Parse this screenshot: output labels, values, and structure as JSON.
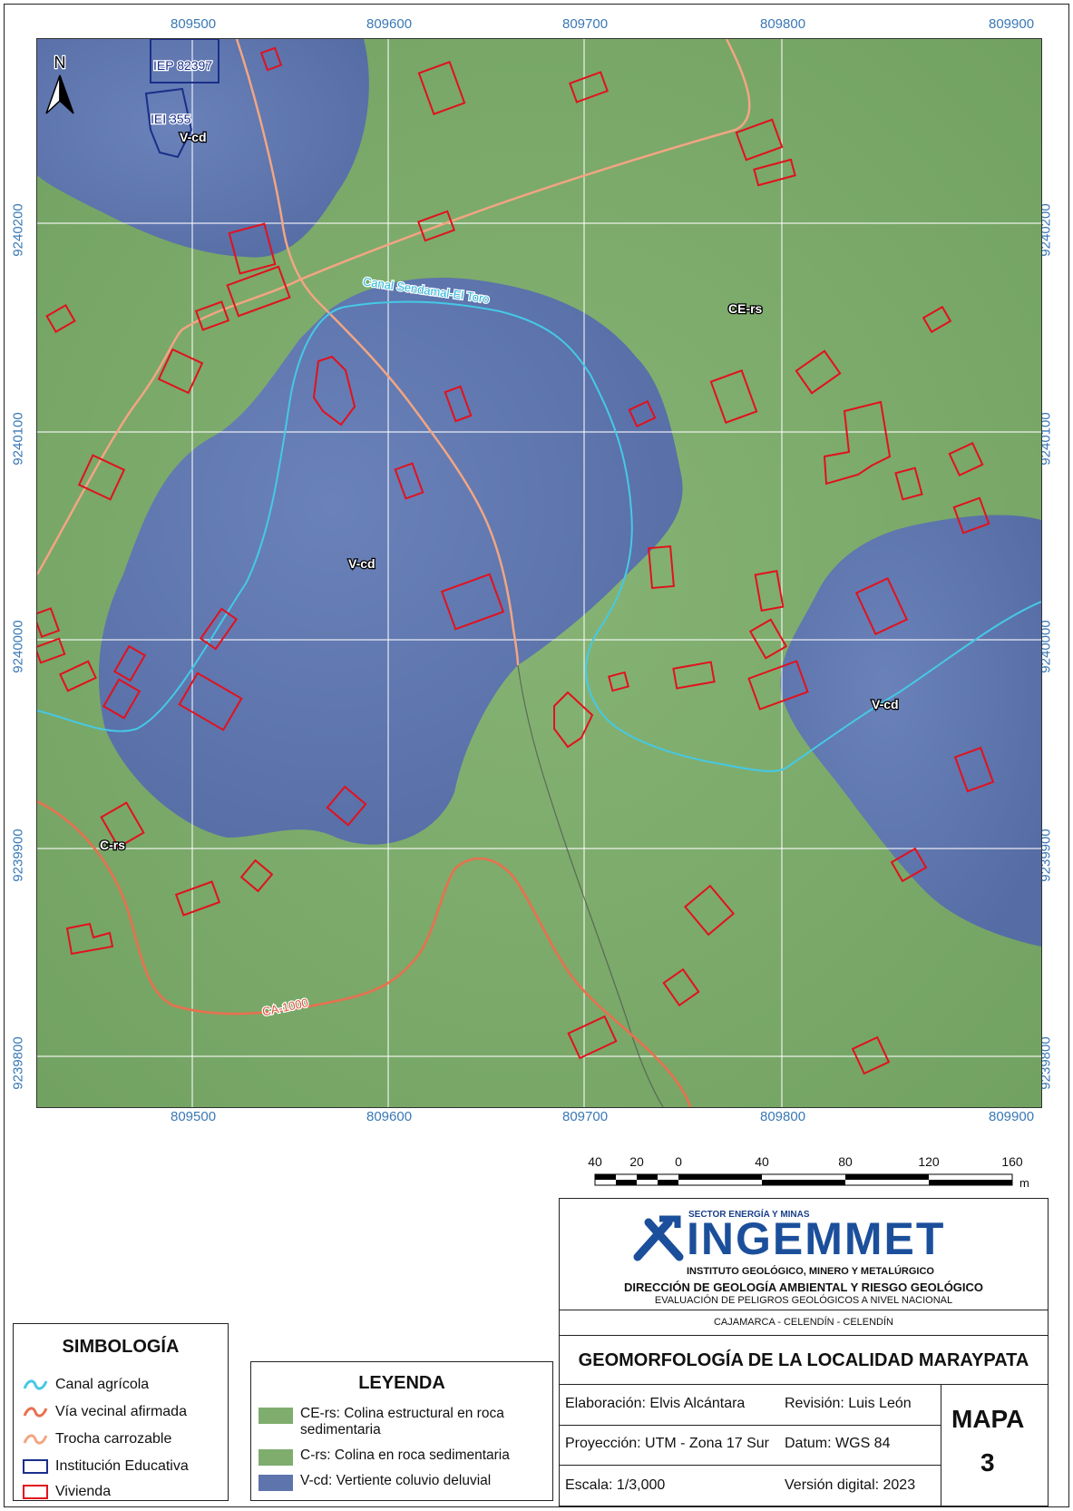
{
  "map": {
    "north_label": "N",
    "easting_ticks": [
      "809500",
      "809600",
      "809700",
      "809800",
      "809900"
    ],
    "northing_ticks": [
      "9240200",
      "9240100",
      "9240000",
      "9239900",
      "9239800"
    ],
    "unit_labels": {
      "V-cd": "V-cd",
      "CE-rs": "CE-rs",
      "C-rs": "C-rs"
    },
    "feature_labels": {
      "canal": "Canal Sendamal-El Toro",
      "road": "CA-1000",
      "school1": "IEP 82397",
      "school2": "IEI 355"
    },
    "colors": {
      "green": "#7fad6e",
      "blue": "#5d74ad",
      "canal": "#45c9e6",
      "road": "#e8704f",
      "trail": "#f2a582",
      "school": "#1a2f8a",
      "house": "#e2111d"
    }
  },
  "scale_bar": {
    "labels": [
      "40",
      "20",
      "0",
      "40",
      "80",
      "120",
      "160"
    ],
    "unit": "m"
  },
  "title_block": {
    "sector": "SECTOR ENERGÍA Y MINAS",
    "org_logo": "INGEMMET",
    "institute": "INSTITUTO GEOLÓGICO, MINERO Y METALÚRGICO",
    "direction": "DIRECCIÓN DE GEOLOGÍA AMBIENTAL Y RIESGO GEOLÓGICO",
    "program": "EVALUACIÓN DE PELIGROS GEOLÓGICOS A NIVEL NACIONAL",
    "location": "CAJAMARCA - CELENDÍN - CELENDÍN",
    "title": "GEOMORFOLOGÍA DE LA LOCALIDAD MARAYPATA",
    "elaboration": "Elaboración: Elvis Alcántara",
    "revision": "Revisión: Luis León",
    "projection": "Proyección: UTM - Zona 17 Sur",
    "datum": "Datum: WGS 84",
    "scale": "Escala: 1/3,000",
    "version": "Versión digital: 2023",
    "map_word": "MAPA",
    "map_number": "3"
  },
  "simbologia": {
    "title": "SIMBOLOGÍA",
    "items": [
      {
        "label": "Canal agrícola",
        "icon": "canal-line-icon"
      },
      {
        "label": "Vía vecinal afirmada",
        "icon": "road-line-icon"
      },
      {
        "label": "Trocha carrozable",
        "icon": "trail-line-icon"
      },
      {
        "label": "Institución Educativa",
        "icon": "school-polygon-icon"
      },
      {
        "label": "Vivienda",
        "icon": "house-polygon-icon"
      }
    ]
  },
  "leyenda": {
    "title": "LEYENDA",
    "items": [
      {
        "label": "CE-rs: Colina estructural en roca sedimentaria",
        "color": "#7fad6e"
      },
      {
        "label": "C-rs: Colina en roca sedimentaria",
        "color": "#7fad6e"
      },
      {
        "label": "V-cd: Vertiente coluvio deluvial",
        "color": "#5d74ad"
      }
    ]
  }
}
